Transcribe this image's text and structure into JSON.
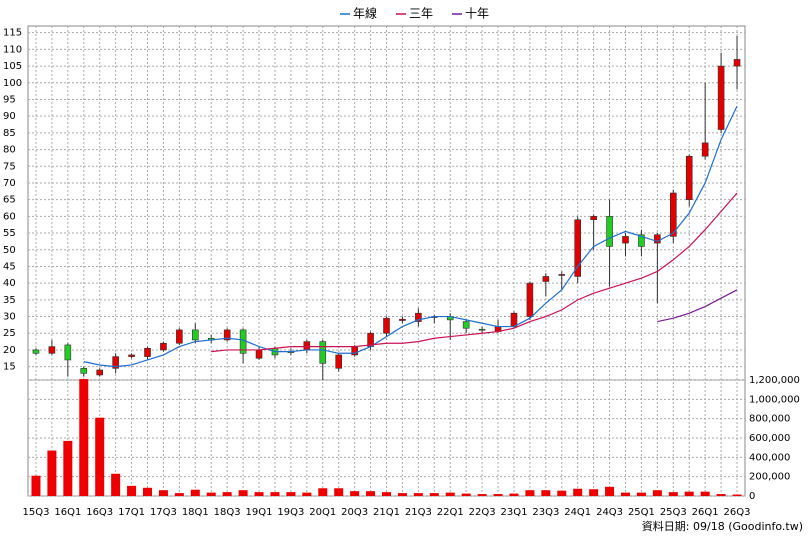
{
  "chart_data": [
    {
      "type": "candlestick",
      "categories": [
        "15Q3",
        null,
        "16Q1",
        null,
        "16Q3",
        null,
        "17Q1",
        null,
        "17Q3",
        null,
        "18Q1",
        null,
        "18Q3",
        null,
        "19Q1",
        null,
        "19Q3",
        null,
        "20Q1",
        null,
        "20Q3",
        null,
        "21Q1",
        null,
        "21Q3",
        null,
        "22Q1",
        null,
        "22Q3",
        null,
        "23Q1",
        null,
        "23Q3",
        null,
        "24Q1",
        null,
        "24Q3",
        null,
        "25Q1",
        null,
        "25Q3",
        null,
        "26Q1",
        null,
        "26Q3"
      ],
      "open": [
        20,
        19,
        21.5,
        14.5,
        12.5,
        14.5,
        18,
        18,
        20,
        22,
        26,
        23.5,
        23,
        26,
        17.5,
        20.5,
        19.5,
        20,
        22.5,
        14.5,
        18.5,
        21,
        25,
        28.8,
        28.5,
        29.8,
        30,
        28.5,
        26.2,
        25.5,
        27,
        30,
        40.5,
        42.3,
        42,
        59,
        60,
        52,
        54.5,
        52,
        54,
        65,
        78,
        86,
        105
      ],
      "high": [
        20.5,
        23,
        22,
        15,
        14.5,
        19,
        19,
        21,
        22.5,
        26.5,
        28,
        24.5,
        26.5,
        26.5,
        21,
        21,
        20.5,
        23,
        23,
        19,
        21.5,
        25.5,
        30,
        30,
        32.5,
        30.5,
        31,
        29,
        27,
        29,
        31.5,
        40.5,
        43,
        43.5,
        60,
        60.5,
        65,
        55,
        56,
        55,
        68,
        78.5,
        100,
        109,
        114
      ],
      "low": [
        18.5,
        18.5,
        12,
        12,
        12,
        13,
        17.5,
        17,
        19.5,
        21.5,
        22,
        22,
        22.5,
        16,
        17,
        17.5,
        18.5,
        19,
        11,
        13.5,
        18,
        20,
        24,
        28,
        27,
        28,
        23,
        25,
        25,
        25,
        26.5,
        29,
        36,
        38,
        40,
        50,
        39,
        48,
        48,
        34,
        52,
        63,
        77,
        85,
        98
      ],
      "close": [
        19,
        21,
        17,
        13,
        14,
        18,
        18.5,
        20.5,
        22,
        26,
        23,
        23,
        26,
        19,
        20,
        18.5,
        19.3,
        22.5,
        16,
        18.5,
        21,
        25,
        29.5,
        29.2,
        31,
        30,
        29,
        26.5,
        26,
        27,
        31,
        40,
        42,
        42.6,
        59,
        60,
        51,
        54,
        51,
        54.5,
        67,
        78,
        82,
        105,
        107
      ],
      "up_color": "#e00000",
      "down_color": "#22cc22",
      "series": [
        {
          "name": "年線",
          "color": "#1e6fd0",
          "values": [
            null,
            null,
            null,
            16.5,
            15.5,
            15,
            15.5,
            17,
            18.5,
            21,
            22.5,
            23,
            23.5,
            23,
            21,
            19.5,
            19.5,
            20,
            20,
            19,
            19,
            21,
            24,
            27,
            29,
            30,
            30,
            29,
            28,
            27,
            27,
            29.5,
            34,
            38,
            45,
            51,
            53.5,
            55.5,
            54,
            52.5,
            55,
            61,
            70,
            83,
            93
          ]
        },
        {
          "name": "三年",
          "color": "#cc1155",
          "values": [
            null,
            null,
            null,
            null,
            null,
            null,
            null,
            null,
            null,
            null,
            null,
            19.5,
            20,
            20,
            20,
            20.5,
            21,
            21,
            21,
            21,
            21,
            21.5,
            22,
            22,
            22.5,
            23.5,
            24,
            24.5,
            25,
            25.5,
            26.5,
            28.5,
            30,
            32,
            35,
            37,
            38.5,
            40,
            41.5,
            43.5,
            47,
            51,
            56,
            61.5,
            67
          ]
        },
        {
          "name": "十年",
          "color": "#7a1a9a",
          "values": [
            null,
            null,
            null,
            null,
            null,
            null,
            null,
            null,
            null,
            null,
            null,
            null,
            null,
            null,
            null,
            null,
            null,
            null,
            null,
            null,
            null,
            null,
            null,
            null,
            null,
            null,
            null,
            null,
            null,
            null,
            null,
            null,
            null,
            null,
            null,
            null,
            null,
            null,
            null,
            28.5,
            29.5,
            31,
            33,
            35.5,
            38
          ]
        }
      ],
      "ylim": [
        11,
        117
      ],
      "yticks": [
        15,
        20,
        25,
        30,
        35,
        40,
        45,
        50,
        55,
        60,
        65,
        70,
        75,
        80,
        85,
        90,
        95,
        100,
        105,
        110,
        115
      ],
      "grid": true,
      "legend": "top"
    },
    {
      "type": "bar",
      "values": [
        210000,
        470000,
        570000,
        1210000,
        810000,
        230000,
        105000,
        85000,
        60000,
        30000,
        65000,
        35000,
        40000,
        60000,
        40000,
        40000,
        40000,
        35000,
        80000,
        80000,
        50000,
        50000,
        40000,
        30000,
        30000,
        30000,
        35000,
        25000,
        20000,
        20000,
        25000,
        60000,
        60000,
        55000,
        75000,
        70000,
        95000,
        35000,
        35000,
        60000,
        40000,
        45000,
        45000,
        20000,
        15000
      ],
      "color": "#ee0000",
      "ylim": [
        0,
        1200000
      ],
      "yticks": [
        0,
        {
          "value": 200000,
          "label": "200,000"
        },
        {
          "value": 400000,
          "label": "400,000"
        },
        {
          "value": 600000,
          "label": "600,000"
        },
        {
          "value": 800000,
          "label": "800,000"
        },
        {
          "value": 1000000,
          "label": "1,000,000"
        },
        {
          "value": 1200000,
          "label": "1,200,000"
        }
      ],
      "grid": true
    }
  ],
  "footer": "資料日期: 09/18  (Goodinfo.tw)"
}
